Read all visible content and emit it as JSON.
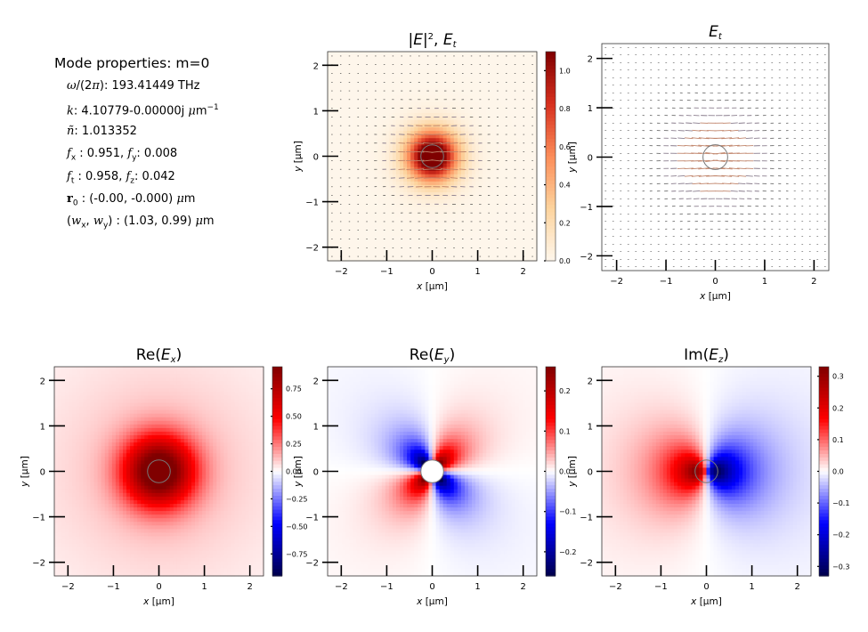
{
  "mode_properties": {
    "title": "Mode properties: m=0",
    "rows": [
      {
        "label_html": "<span class='mi'>ω</span>/(2<span class='mi'>π</span>):",
        "value": "193.41449 THz"
      },
      {
        "label_html": "<span class='mi'>k</span>:",
        "value_html": "4.10779-0.00000j <span class='mi'>μ</span>m<sup style='font-size:9px'>−1</sup>"
      },
      {
        "label_html": "<span class='mi'>ñ</span>:",
        "value": "1.013352"
      },
      {
        "label_html": "<span class='mi'>f</span><sub style='font-size:9px'>x</sub> :",
        "value_html": "0.951, <span class='mi'>f</span><sub style='font-size:9px'>y</sub>: 0.008"
      },
      {
        "label_html": "<span class='mi'>f</span><sub style='font-size:9px'>t</sub> :",
        "value_html": "0.958, <span class='mi'>f</span><sub style='font-size:9px'>z</sub>: 0.042"
      },
      {
        "label_html": "<span class='mb'>r</span><sub style='font-size:9px'>0</sub> :",
        "value_html": "(-0.00, -0.000) <span class='mi'>μ</span>m"
      },
      {
        "label_html": "(<span class='mi'>w</span><sub style='font-size:9px'>x</sub>, <span class='mi'>w</span><sub style='font-size:9px'>y</sub>) :",
        "value_html": "(1.03, 0.99) <span class='mi'>μ</span>m"
      }
    ]
  },
  "chart_data": [
    {
      "id": "intensity",
      "type": "heatmap",
      "title": "|E|², E_t",
      "xlabel": "x [μm]",
      "ylabel": "y [μm]",
      "xlim": [
        -2.3,
        2.3
      ],
      "ylim": [
        -2.3,
        2.3
      ],
      "xticks": [
        -2,
        -1,
        0,
        1,
        2
      ],
      "yticks": [
        -2,
        -1,
        0,
        1,
        2
      ],
      "tick_labels": [
        "−2",
        "−1",
        "0",
        "1",
        "2"
      ],
      "colormap": "OrRd",
      "colorbar": {
        "min": 0.0,
        "max": 1.1,
        "ticks": [
          0.0,
          0.2,
          0.4,
          0.6,
          0.8,
          1.0
        ],
        "labels": [
          "0.0",
          "0.2",
          "0.4",
          "0.6",
          "0.8",
          "1.0"
        ]
      },
      "field": "intensity",
      "quiver": true,
      "core_radius": 0.25,
      "peak_value": 1.1
    },
    {
      "id": "transverse",
      "type": "quiver",
      "title": "E_t",
      "xlabel": "x [μm]",
      "ylabel": "y [μm]",
      "xlim": [
        -2.3,
        2.3
      ],
      "ylim": [
        -2.3,
        2.3
      ],
      "xticks": [
        -2,
        -1,
        0,
        1,
        2
      ],
      "yticks": [
        -2,
        -1,
        0,
        1,
        2
      ],
      "tick_labels": [
        "−2",
        "−1",
        "0",
        "1",
        "2"
      ],
      "core_radius": 0.25
    },
    {
      "id": "re_ex",
      "type": "heatmap",
      "title": "Re(Ex)",
      "xlabel": "x [μm]",
      "ylabel": "y [μm]",
      "xlim": [
        -2.3,
        2.3
      ],
      "ylim": [
        -2.3,
        2.3
      ],
      "xticks": [
        -2,
        -1,
        0,
        1,
        2
      ],
      "yticks": [
        -2,
        -1,
        0,
        1,
        2
      ],
      "tick_labels": [
        "−2",
        "−1",
        "0",
        "1",
        "2"
      ],
      "colormap": "seismic",
      "colorbar": {
        "min": -0.95,
        "max": 0.95,
        "ticks": [
          -0.75,
          -0.5,
          -0.25,
          0.0,
          0.25,
          0.5,
          0.75
        ],
        "labels": [
          "−0.75",
          "−0.50",
          "−0.25",
          "0.00",
          "0.25",
          "0.50",
          "0.75"
        ]
      },
      "field": "ex",
      "core_radius": 0.25,
      "peak_value": 0.95
    },
    {
      "id": "re_ey",
      "type": "heatmap",
      "title": "Re(Ey)",
      "xlabel": "x [μm]",
      "ylabel": "y [μm]",
      "xlim": [
        -2.3,
        2.3
      ],
      "ylim": [
        -2.3,
        2.3
      ],
      "xticks": [
        -2,
        -1,
        0,
        1,
        2
      ],
      "yticks": [
        -2,
        -1,
        0,
        1,
        2
      ],
      "tick_labels": [
        "−2",
        "−1",
        "0",
        "1",
        "2"
      ],
      "colormap": "seismic",
      "colorbar": {
        "min": -0.26,
        "max": 0.26,
        "ticks": [
          -0.2,
          -0.1,
          0.0,
          0.1,
          0.2
        ],
        "labels": [
          "−0.2",
          "−0.1",
          "0.0",
          "0.1",
          "0.2"
        ]
      },
      "field": "ey",
      "core_radius": 0.25,
      "peak_value": 0.26
    },
    {
      "id": "im_ez",
      "type": "heatmap",
      "title": "Im(Ez)",
      "xlabel": "x [μm]",
      "ylabel": "y [μm]",
      "xlim": [
        -2.3,
        2.3
      ],
      "ylim": [
        -2.3,
        2.3
      ],
      "xticks": [
        -2,
        -1,
        0,
        1,
        2
      ],
      "yticks": [
        -2,
        -1,
        0,
        1,
        2
      ],
      "tick_labels": [
        "−2",
        "−1",
        "0",
        "1",
        "2"
      ],
      "colormap": "seismic",
      "colorbar": {
        "min": -0.33,
        "max": 0.33,
        "ticks": [
          -0.3,
          -0.2,
          -0.1,
          0.0,
          0.1,
          0.2,
          0.3
        ],
        "labels": [
          "−0.3",
          "−0.2",
          "−0.1",
          "0.0",
          "0.1",
          "0.2",
          "0.3"
        ]
      },
      "field": "ez",
      "core_radius": 0.25,
      "peak_value": 0.33
    }
  ]
}
